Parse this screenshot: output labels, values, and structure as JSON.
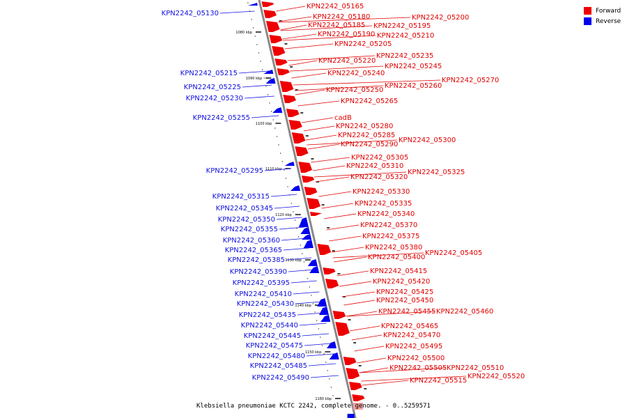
{
  "legend": {
    "forward_label": "Forward",
    "reverse_label": "Reverse",
    "forward_color": "#ee0000",
    "reverse_color": "#0000ee"
  },
  "caption": "Klebsiella pneumoniae KCTC 2242, complete genome. - 0..5259571",
  "kbp_ticks": [
    "1080 kbp",
    "1090 kbp",
    "1100 kbp",
    "1110 kbp",
    "1120 kbp",
    "1130 kbp",
    "1140 kbp",
    "1150 kbp",
    "1160 kbp"
  ],
  "forward_genes": [
    "KPN2242_05165",
    "KPN2242_05180",
    "KPN2242_05200",
    "KPN2242_05185",
    "KPN2242_05195",
    "KPN2242_05190",
    "KPN2242_05210",
    "KPN2242_05205",
    "KPN2242_05235",
    "KPN2242_05220",
    "KPN2242_05245",
    "KPN2242_05240",
    "KPN2242_05270",
    "KPN2242_05260",
    "KPN2242_05250",
    "KPN2242_05265",
    "cadB",
    "KPN2242_05280",
    "KPN2242_05285",
    "KPN2242_05300",
    "KPN2242_05290",
    "KPN2242_05305",
    "KPN2242_05310",
    "KPN2242_05325",
    "KPN2242_05320",
    "KPN2242_05330",
    "KPN2242_05335",
    "KPN2242_05340",
    "KPN2242_05370",
    "KPN2242_05375",
    "KPN2242_05380",
    "KPN2242_05405",
    "KPN2242_05400",
    "KPN2242_05415",
    "KPN2242_05420",
    "KPN2242_05425",
    "KPN2242_05450",
    "KPN2242_05455",
    "KPN2242_05460",
    "KPN2242_05465",
    "KPN2242_05470",
    "KPN2242_05495",
    "KPN2242_05500",
    "KPN2242_05505",
    "KPN2242_05510",
    "KPN2242_05520",
    "KPN2242_05515"
  ],
  "reverse_genes": [
    "KPN2242_05130",
    "KPN2242_05215",
    "KPN2242_05225",
    "KPN2242_05230",
    "KPN2242_05255",
    "KPN2242_05295",
    "KPN2242_05315",
    "KPN2242_05345",
    "KPN2242_05350",
    "KPN2242_05355",
    "KPN2242_05360",
    "KPN2242_05365",
    "KPN2242_05385",
    "KPN2242_05390",
    "KPN2242_05395",
    "KPN2242_05410",
    "KPN2242_05430",
    "KPN2242_05435",
    "KPN2242_05440",
    "KPN2242_05445",
    "KPN2242_05475",
    "KPN2242_05480",
    "KPN2242_05485",
    "KPN2242_05490"
  ]
}
